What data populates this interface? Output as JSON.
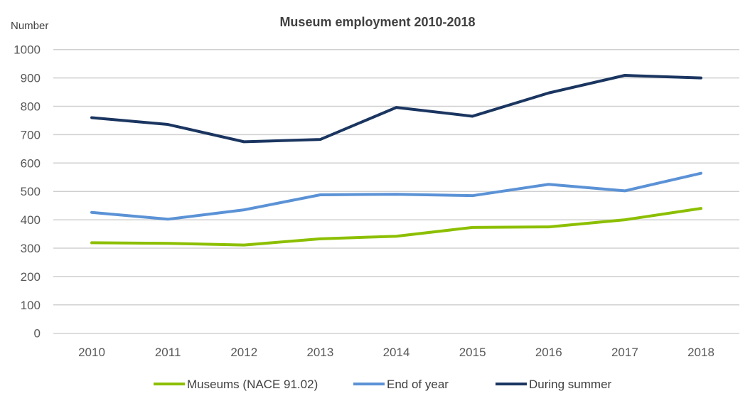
{
  "chart_data": {
    "type": "line",
    "title": "Museum employment 2010-2018",
    "ylabel": "Number",
    "xlabel": "",
    "ylim": [
      0,
      1000
    ],
    "yticks": [
      0,
      100,
      200,
      300,
      400,
      500,
      600,
      700,
      800,
      900,
      1000
    ],
    "grid": true,
    "legend_position": "bottom",
    "categories": [
      "2010",
      "2011",
      "2012",
      "2013",
      "2014",
      "2015",
      "2016",
      "2017",
      "2018"
    ],
    "series": [
      {
        "name": "Museums (NACE  91.02)",
        "color": "#8cbf00",
        "values": [
          319,
          317,
          311,
          333,
          342,
          373,
          375,
          400,
          440
        ]
      },
      {
        "name": "End of year",
        "color": "#5b92d6",
        "values": [
          426,
          402,
          435,
          488,
          490,
          485,
          525,
          502,
          564
        ]
      },
      {
        "name": "During summer",
        "color": "#1a3560",
        "values": [
          760,
          736,
          675,
          683,
          796,
          765,
          847,
          909,
          900
        ]
      }
    ]
  }
}
